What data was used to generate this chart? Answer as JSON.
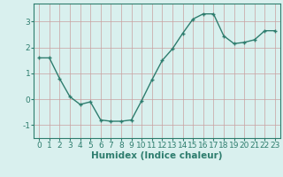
{
  "x": [
    0,
    1,
    2,
    3,
    4,
    5,
    6,
    7,
    8,
    9,
    10,
    11,
    12,
    13,
    14,
    15,
    16,
    17,
    18,
    19,
    20,
    21,
    22,
    23
  ],
  "y": [
    1.6,
    1.6,
    0.8,
    0.1,
    -0.2,
    -0.1,
    -0.8,
    -0.85,
    -0.85,
    -0.8,
    -0.05,
    0.75,
    1.5,
    1.95,
    2.55,
    3.1,
    3.3,
    3.3,
    2.45,
    2.15,
    2.2,
    2.3,
    2.65,
    2.65
  ],
  "line_color": "#2e7d6e",
  "marker": "D",
  "marker_size": 2.5,
  "line_width": 1.0,
  "bg_color": "#d9f0ee",
  "grid_color_v": "#c9a0a0",
  "grid_color_h": "#c9a0a0",
  "xlabel": "Humidex (Indice chaleur)",
  "xlabel_fontsize": 7.5,
  "tick_fontsize": 6.5,
  "xlim": [
    -0.5,
    23.5
  ],
  "ylim": [
    -1.5,
    3.7
  ],
  "yticks": [
    -1,
    0,
    1,
    2,
    3
  ],
  "xticks": [
    0,
    1,
    2,
    3,
    4,
    5,
    6,
    7,
    8,
    9,
    10,
    11,
    12,
    13,
    14,
    15,
    16,
    17,
    18,
    19,
    20,
    21,
    22,
    23
  ]
}
